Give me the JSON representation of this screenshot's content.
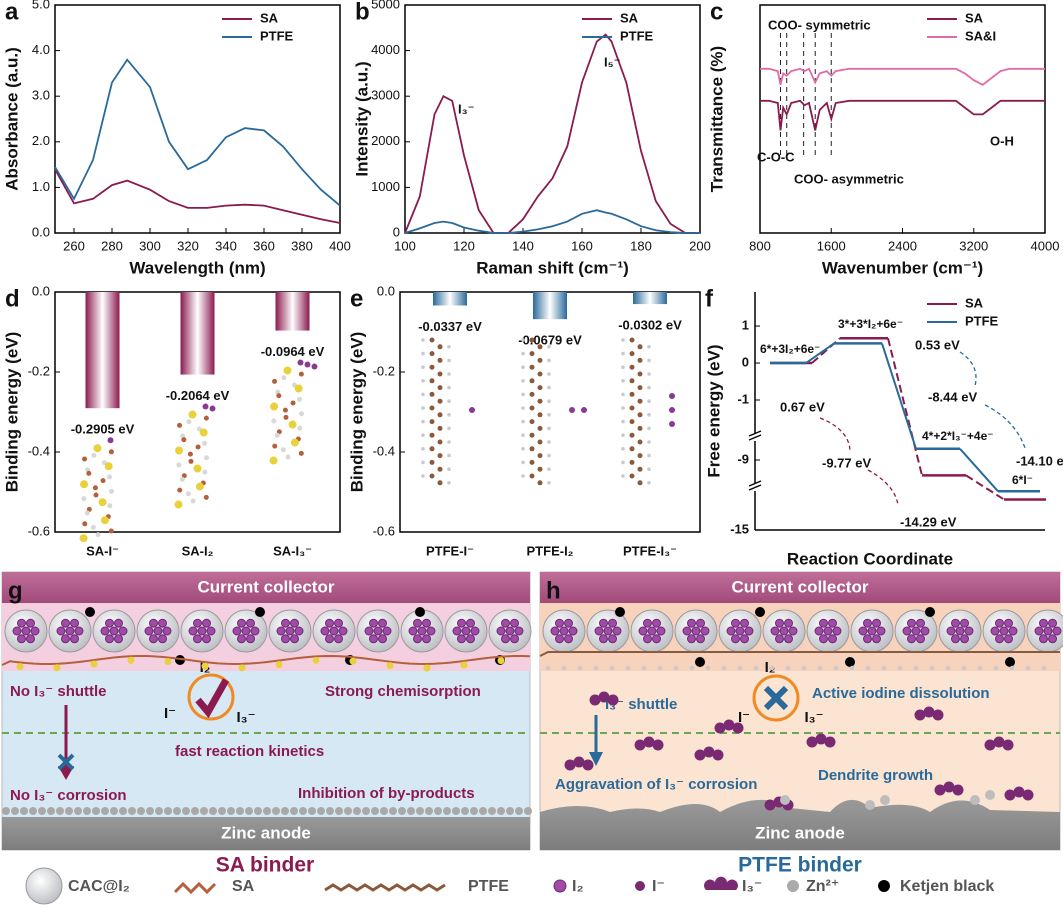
{
  "chart_data": [
    {
      "type": "line",
      "label": "a",
      "xlabel": "Wavelength (nm)",
      "ylabel": "Absorbance (a.u.)",
      "x": [
        250,
        260,
        270,
        280,
        288,
        300,
        310,
        320,
        330,
        340,
        350,
        360,
        370,
        380,
        390,
        400
      ],
      "series": [
        {
          "name": "SA",
          "color": "#8b1a4f",
          "values": [
            1.4,
            0.65,
            0.75,
            1.05,
            1.15,
            0.95,
            0.7,
            0.55,
            0.55,
            0.6,
            0.62,
            0.6,
            0.5,
            0.4,
            0.3,
            0.22
          ]
        },
        {
          "name": "PTFE",
          "color": "#2a6a9a",
          "values": [
            1.45,
            0.75,
            1.6,
            3.3,
            3.8,
            3.2,
            2.0,
            1.4,
            1.6,
            2.1,
            2.3,
            2.25,
            1.9,
            1.4,
            0.95,
            0.6
          ]
        }
      ],
      "xlim": [
        250,
        400
      ],
      "xticks": [
        260,
        280,
        300,
        320,
        340,
        360,
        380,
        400
      ],
      "ylim": [
        0,
        5
      ],
      "yticks": [
        {
          "value": 0,
          "label": "0.0"
        },
        {
          "value": 1,
          "label": "1.0"
        },
        {
          "value": 2,
          "label": "2.0"
        },
        {
          "value": 3,
          "label": "3.0"
        },
        {
          "value": 4,
          "label": "4.0"
        },
        {
          "value": 5,
          "label": "5.0"
        }
      ],
      "legend": "upper right"
    },
    {
      "type": "line",
      "label": "b",
      "xlabel": "Raman shift (cm⁻¹)",
      "ylabel": "Intensity (a.u.)",
      "x": [
        100,
        105,
        110,
        113,
        116,
        120,
        125,
        130,
        135,
        140,
        145,
        150,
        155,
        160,
        165,
        168,
        170,
        175,
        180,
        185,
        190,
        195,
        200
      ],
      "series": [
        {
          "name": "SA",
          "color": "#8b1a4f",
          "values": [
            0,
            800,
            2600,
            3000,
            2900,
            1700,
            500,
            0,
            0,
            300,
            800,
            1200,
            1900,
            3300,
            4200,
            4350,
            4200,
            3300,
            1800,
            700,
            200,
            0,
            0
          ]
        },
        {
          "name": "PTFE",
          "color": "#2a6a9a",
          "values": [
            0,
            100,
            220,
            250,
            220,
            120,
            50,
            0,
            0,
            30,
            80,
            150,
            250,
            420,
            500,
            450,
            420,
            300,
            150,
            60,
            20,
            0,
            0
          ]
        }
      ],
      "xlim": [
        100,
        200
      ],
      "xticks": [
        100,
        120,
        140,
        160,
        180,
        200
      ],
      "ylim": [
        0,
        5000
      ],
      "yticks": [
        0,
        1000,
        2000,
        3000,
        4000,
        5000
      ],
      "annotations": [
        "I₃⁻",
        "I₅⁻"
      ],
      "legend": "upper right"
    },
    {
      "type": "line",
      "label": "c",
      "xlabel": "Wavenumber (cm⁻¹)",
      "ylabel": "Transmittance (%)",
      "x": [
        800,
        900,
        1000,
        1030,
        1060,
        1100,
        1150,
        1250,
        1300,
        1350,
        1420,
        1470,
        1550,
        1600,
        1650,
        1800,
        2000,
        2400,
        2800,
        3000,
        3100,
        3200,
        3300,
        3400,
        3500,
        3600,
        4000
      ],
      "series": [
        {
          "name": "SA",
          "color": "#8b1a4f",
          "values": [
            58,
            58,
            57,
            45,
            55,
            52,
            57,
            58,
            56,
            57,
            45,
            54,
            57,
            50,
            57,
            58,
            58,
            58,
            58,
            58,
            55,
            52,
            52,
            55,
            58,
            58,
            58
          ]
        },
        {
          "name": "SA&I",
          "color": "#e36aa6",
          "values": [
            72,
            72,
            71,
            65,
            70,
            69,
            71,
            72,
            71,
            72,
            66,
            70,
            71,
            69,
            71,
            72,
            72,
            72,
            72,
            72,
            70,
            67,
            65,
            68,
            71,
            72,
            72
          ]
        }
      ],
      "xlim": [
        800,
        4000
      ],
      "xticks": [
        800,
        1600,
        2400,
        3200,
        4000
      ],
      "ylim": [
        0,
        100
      ],
      "markers": [
        1030,
        1100,
        1290,
        1420,
        1600
      ],
      "annotations": [
        "COO-  symmetric",
        "C-O-C",
        "COO-  asymmetric",
        "O-H"
      ],
      "legend": "upper right"
    },
    {
      "type": "bar",
      "label": "d",
      "ylabel": "Binding energy (eV)",
      "categories": [
        "SA-I⁻",
        "SA-I₂",
        "SA-I₃⁻"
      ],
      "values": [
        -0.2905,
        -0.2064,
        -0.0964
      ],
      "value_labels": [
        "-0.2905 eV",
        "-0.2064 eV",
        "-0.0964 eV"
      ],
      "color": "#8b1a4f",
      "ylim": [
        -0.6,
        0
      ],
      "yticks": [
        {
          "value": 0,
          "label": "0.0"
        },
        {
          "value": -0.2,
          "label": "-0.2"
        },
        {
          "value": -0.4,
          "label": "-0.4"
        },
        {
          "value": -0.6,
          "label": "-0.6"
        }
      ]
    },
    {
      "type": "bar",
      "label": "e",
      "ylabel": "Binding energy (eV)",
      "categories": [
        "PTFE-I⁻",
        "PTFE-I₂",
        "PTFE-I₃⁻"
      ],
      "values": [
        -0.0337,
        -0.0679,
        -0.0302
      ],
      "value_labels": [
        "-0.0337 eV",
        "-0.0679 eV",
        "-0.0302 eV"
      ],
      "color": "#2a6a9a",
      "ylim": [
        -0.6,
        0
      ],
      "yticks": [
        {
          "value": 0,
          "label": "0.0"
        },
        {
          "value": -0.2,
          "label": "-0.2"
        },
        {
          "value": -0.4,
          "label": "-0.4"
        },
        {
          "value": -0.6,
          "label": "-0.6"
        }
      ]
    },
    {
      "type": "energy",
      "label": "f",
      "xlabel": "Reaction Coordinate",
      "ylabel": "Free energy (eV)",
      "states": [
        "6*+3I₂+6e⁻",
        "3*+3*I₂+6e⁻",
        "4*+2*I₃⁻+4e⁻",
        "6*I⁻"
      ],
      "series": [
        {
          "name": "SA",
          "color": "#8b1a4f",
          "values": [
            0,
            0.67,
            -9.77,
            -14.29
          ],
          "value_labels": [
            null,
            "0.67 eV",
            "-9.77 eV",
            "-14.29 eV"
          ]
        },
        {
          "name": "PTFE",
          "color": "#2a6a9a",
          "values": [
            0,
            0.53,
            -8.44,
            -14.1
          ],
          "value_labels": [
            null,
            "0.53 eV",
            "-8.44 eV",
            "-14.10 eV"
          ]
        }
      ],
      "ylim": [
        -15,
        1.92
      ],
      "ybreaks": [
        [
          -14,
          -10.35
        ],
        [
          -7.85,
          -2
        ]
      ],
      "yticks": [
        1,
        0,
        -1,
        -9,
        -15
      ],
      "legend": "upper right"
    }
  ],
  "schematics": {
    "g": {
      "label": "g",
      "collector": "Current collector",
      "anode": "Zinc anode",
      "binder": "SA binder",
      "texts": [
        "No I₃⁻ shuttle",
        "Strong chemisorption",
        "fast reaction kinetics",
        "No I₃⁻ corrosion",
        "Inhibition of by-products"
      ],
      "cycle": [
        "I₂",
        "I⁻",
        "I₃⁻"
      ]
    },
    "h": {
      "label": "h",
      "collector": "Current collector",
      "anode": "Zinc anode",
      "binder": "PTFE binder",
      "texts": [
        "I₃⁻ shuttle",
        "Active iodine dissolution",
        "Aggravation of I₃⁻ corrosion",
        "Dendrite growth"
      ],
      "cycle": [
        "I₂",
        "I⁻",
        "I₃⁻"
      ]
    },
    "legend": [
      "CAC@I₂",
      "SA",
      "PTFE",
      "I₂",
      "I⁻",
      "I₃⁻",
      "Zn²⁺",
      "Ketjen black"
    ]
  }
}
